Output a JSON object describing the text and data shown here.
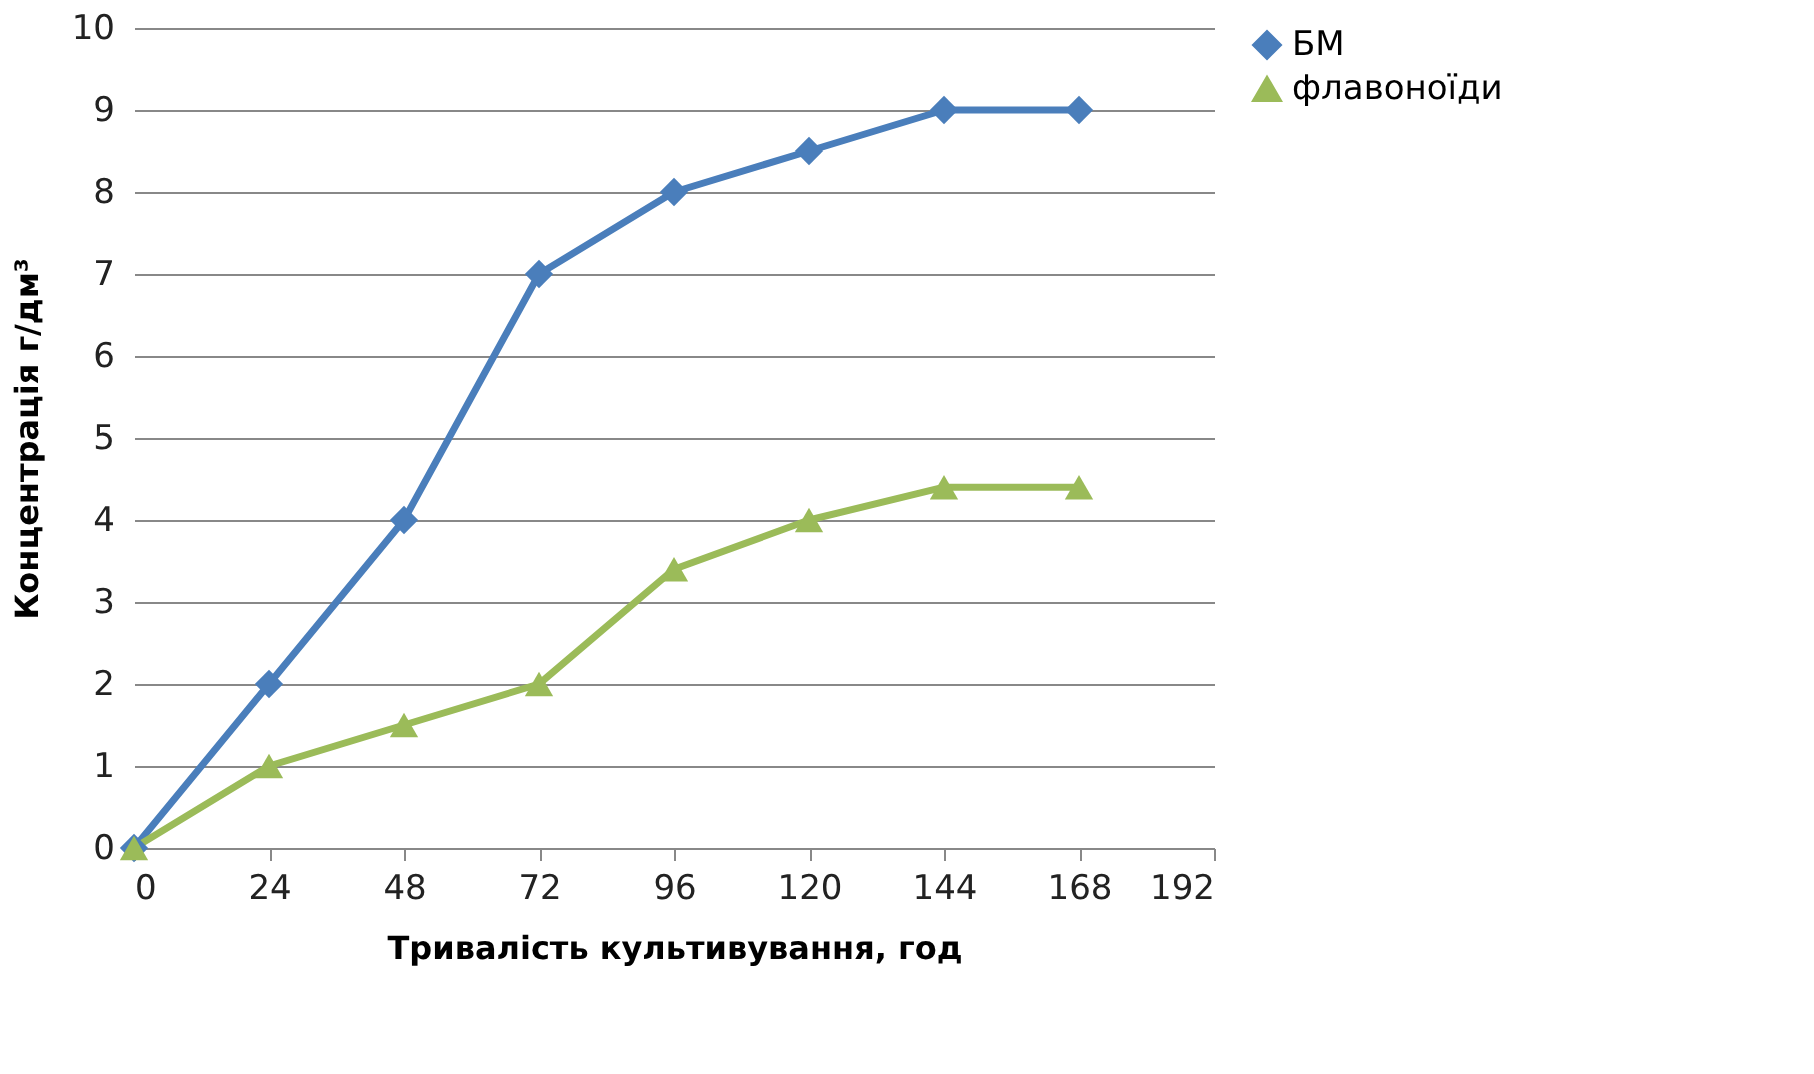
{
  "chart_data": {
    "type": "line",
    "xlabel": "Тривалість культивування, год",
    "ylabel": "Концентрація г/дм³",
    "x": [
      0,
      24,
      48,
      72,
      96,
      120,
      144,
      168
    ],
    "series": [
      {
        "name": "БМ",
        "color": "#4a7ebb",
        "marker": "diamond",
        "values": [
          0,
          2,
          4,
          7,
          8,
          8.5,
          9,
          9
        ]
      },
      {
        "name": "флавоноїди",
        "color": "#9bbb59",
        "marker": "triangle",
        "values": [
          0,
          1,
          1.5,
          2,
          3.4,
          4,
          4.4,
          4.4
        ]
      }
    ],
    "xlim": [
      0,
      192
    ],
    "xticks": [
      0,
      24,
      48,
      72,
      96,
      120,
      144,
      168,
      192
    ],
    "ylim": [
      0,
      10
    ],
    "yticks": [
      0,
      1,
      2,
      3,
      4,
      5,
      6,
      7,
      8,
      9,
      10
    ],
    "grid": "y",
    "legend": "right",
    "line_style": "solid"
  }
}
